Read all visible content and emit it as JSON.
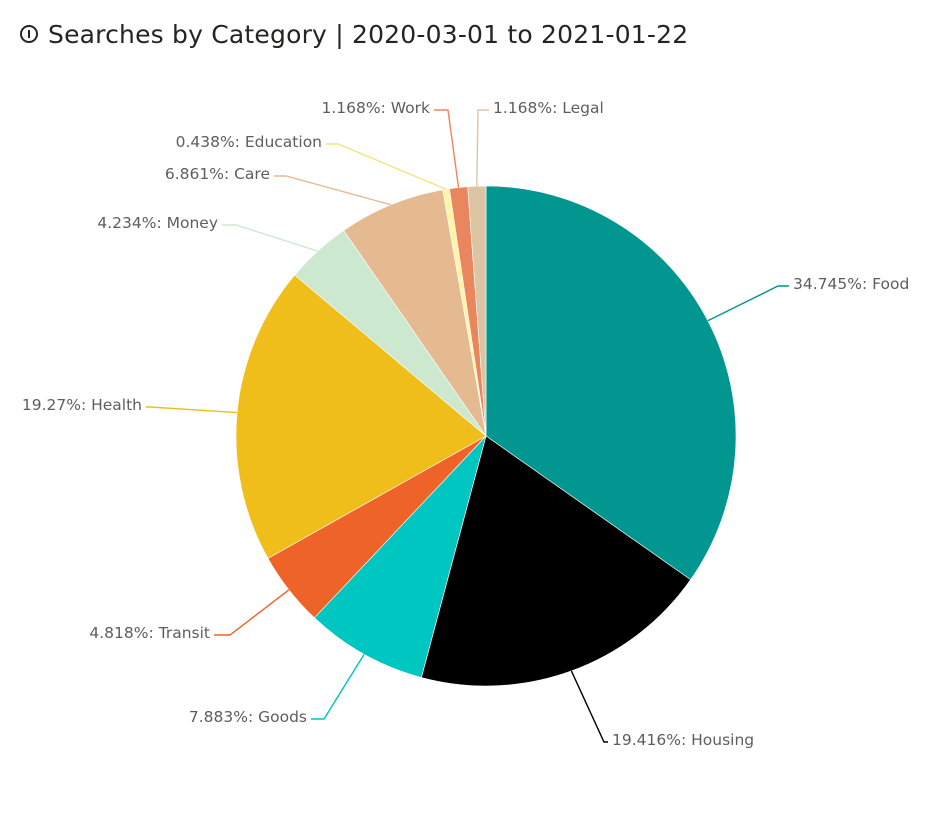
{
  "header": {
    "title": "Searches by Category | 2020-03-01 to 2021-01-22",
    "icon": "info-icon"
  },
  "chart_data": {
    "type": "pie",
    "title": "Searches by Category | 2020-03-01 to 2021-01-22",
    "slices": [
      {
        "name": "Food",
        "value": 34.745,
        "label": "34.745%: Food",
        "color": "#01968F"
      },
      {
        "name": "Housing",
        "value": 19.416,
        "label": "19.416%: Housing",
        "color": "#000000"
      },
      {
        "name": "Goods",
        "value": 7.883,
        "label": "7.883%: Goods",
        "color": "#00C6C1"
      },
      {
        "name": "Transit",
        "value": 4.818,
        "label": "4.818%: Transit",
        "color": "#EE6327"
      },
      {
        "name": "Health",
        "value": 19.27,
        "label": "19.27%: Health",
        "color": "#F0BE1B"
      },
      {
        "name": "Money",
        "value": 4.234,
        "label": "4.234%: Money",
        "color": "#CCE9D0"
      },
      {
        "name": "Care",
        "value": 6.861,
        "label": "6.861%: Care",
        "color": "#E6BA91"
      },
      {
        "name": "Education",
        "value": 0.438,
        "label": "0.438%: Education",
        "color": "#FFF4A8"
      },
      {
        "name": "Work",
        "value": 1.168,
        "label": "1.168%: Work",
        "color": "#E9865D"
      },
      {
        "name": "Legal",
        "value": 1.168,
        "label": "1.168%: Legal",
        "color": "#DDC5A3"
      }
    ],
    "legend": "none"
  }
}
